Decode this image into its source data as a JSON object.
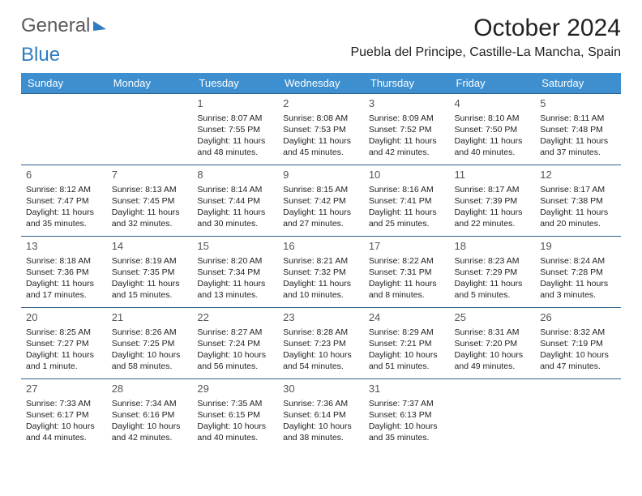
{
  "logo": {
    "word1": "General",
    "word2": "Blue"
  },
  "title": "October 2024",
  "location": "Puebla del Principe, Castille-La Mancha, Spain",
  "dayHeaders": [
    "Sunday",
    "Monday",
    "Tuesday",
    "Wednesday",
    "Thursday",
    "Friday",
    "Saturday"
  ],
  "colors": {
    "header_bg": "#3d8fcf",
    "header_text": "#ffffff",
    "row_border": "#2d5e8a",
    "logo_gray": "#5a5a5a",
    "logo_blue": "#2e7cc0"
  },
  "weeks": [
    [
      null,
      null,
      {
        "n": "1",
        "sr": "Sunrise: 8:07 AM",
        "ss": "Sunset: 7:55 PM",
        "dl": "Daylight: 11 hours and 48 minutes."
      },
      {
        "n": "2",
        "sr": "Sunrise: 8:08 AM",
        "ss": "Sunset: 7:53 PM",
        "dl": "Daylight: 11 hours and 45 minutes."
      },
      {
        "n": "3",
        "sr": "Sunrise: 8:09 AM",
        "ss": "Sunset: 7:52 PM",
        "dl": "Daylight: 11 hours and 42 minutes."
      },
      {
        "n": "4",
        "sr": "Sunrise: 8:10 AM",
        "ss": "Sunset: 7:50 PM",
        "dl": "Daylight: 11 hours and 40 minutes."
      },
      {
        "n": "5",
        "sr": "Sunrise: 8:11 AM",
        "ss": "Sunset: 7:48 PM",
        "dl": "Daylight: 11 hours and 37 minutes."
      }
    ],
    [
      {
        "n": "6",
        "sr": "Sunrise: 8:12 AM",
        "ss": "Sunset: 7:47 PM",
        "dl": "Daylight: 11 hours and 35 minutes."
      },
      {
        "n": "7",
        "sr": "Sunrise: 8:13 AM",
        "ss": "Sunset: 7:45 PM",
        "dl": "Daylight: 11 hours and 32 minutes."
      },
      {
        "n": "8",
        "sr": "Sunrise: 8:14 AM",
        "ss": "Sunset: 7:44 PM",
        "dl": "Daylight: 11 hours and 30 minutes."
      },
      {
        "n": "9",
        "sr": "Sunrise: 8:15 AM",
        "ss": "Sunset: 7:42 PM",
        "dl": "Daylight: 11 hours and 27 minutes."
      },
      {
        "n": "10",
        "sr": "Sunrise: 8:16 AM",
        "ss": "Sunset: 7:41 PM",
        "dl": "Daylight: 11 hours and 25 minutes."
      },
      {
        "n": "11",
        "sr": "Sunrise: 8:17 AM",
        "ss": "Sunset: 7:39 PM",
        "dl": "Daylight: 11 hours and 22 minutes."
      },
      {
        "n": "12",
        "sr": "Sunrise: 8:17 AM",
        "ss": "Sunset: 7:38 PM",
        "dl": "Daylight: 11 hours and 20 minutes."
      }
    ],
    [
      {
        "n": "13",
        "sr": "Sunrise: 8:18 AM",
        "ss": "Sunset: 7:36 PM",
        "dl": "Daylight: 11 hours and 17 minutes."
      },
      {
        "n": "14",
        "sr": "Sunrise: 8:19 AM",
        "ss": "Sunset: 7:35 PM",
        "dl": "Daylight: 11 hours and 15 minutes."
      },
      {
        "n": "15",
        "sr": "Sunrise: 8:20 AM",
        "ss": "Sunset: 7:34 PM",
        "dl": "Daylight: 11 hours and 13 minutes."
      },
      {
        "n": "16",
        "sr": "Sunrise: 8:21 AM",
        "ss": "Sunset: 7:32 PM",
        "dl": "Daylight: 11 hours and 10 minutes."
      },
      {
        "n": "17",
        "sr": "Sunrise: 8:22 AM",
        "ss": "Sunset: 7:31 PM",
        "dl": "Daylight: 11 hours and 8 minutes."
      },
      {
        "n": "18",
        "sr": "Sunrise: 8:23 AM",
        "ss": "Sunset: 7:29 PM",
        "dl": "Daylight: 11 hours and 5 minutes."
      },
      {
        "n": "19",
        "sr": "Sunrise: 8:24 AM",
        "ss": "Sunset: 7:28 PM",
        "dl": "Daylight: 11 hours and 3 minutes."
      }
    ],
    [
      {
        "n": "20",
        "sr": "Sunrise: 8:25 AM",
        "ss": "Sunset: 7:27 PM",
        "dl": "Daylight: 11 hours and 1 minute."
      },
      {
        "n": "21",
        "sr": "Sunrise: 8:26 AM",
        "ss": "Sunset: 7:25 PM",
        "dl": "Daylight: 10 hours and 58 minutes."
      },
      {
        "n": "22",
        "sr": "Sunrise: 8:27 AM",
        "ss": "Sunset: 7:24 PM",
        "dl": "Daylight: 10 hours and 56 minutes."
      },
      {
        "n": "23",
        "sr": "Sunrise: 8:28 AM",
        "ss": "Sunset: 7:23 PM",
        "dl": "Daylight: 10 hours and 54 minutes."
      },
      {
        "n": "24",
        "sr": "Sunrise: 8:29 AM",
        "ss": "Sunset: 7:21 PM",
        "dl": "Daylight: 10 hours and 51 minutes."
      },
      {
        "n": "25",
        "sr": "Sunrise: 8:31 AM",
        "ss": "Sunset: 7:20 PM",
        "dl": "Daylight: 10 hours and 49 minutes."
      },
      {
        "n": "26",
        "sr": "Sunrise: 8:32 AM",
        "ss": "Sunset: 7:19 PM",
        "dl": "Daylight: 10 hours and 47 minutes."
      }
    ],
    [
      {
        "n": "27",
        "sr": "Sunrise: 7:33 AM",
        "ss": "Sunset: 6:17 PM",
        "dl": "Daylight: 10 hours and 44 minutes."
      },
      {
        "n": "28",
        "sr": "Sunrise: 7:34 AM",
        "ss": "Sunset: 6:16 PM",
        "dl": "Daylight: 10 hours and 42 minutes."
      },
      {
        "n": "29",
        "sr": "Sunrise: 7:35 AM",
        "ss": "Sunset: 6:15 PM",
        "dl": "Daylight: 10 hours and 40 minutes."
      },
      {
        "n": "30",
        "sr": "Sunrise: 7:36 AM",
        "ss": "Sunset: 6:14 PM",
        "dl": "Daylight: 10 hours and 38 minutes."
      },
      {
        "n": "31",
        "sr": "Sunrise: 7:37 AM",
        "ss": "Sunset: 6:13 PM",
        "dl": "Daylight: 10 hours and 35 minutes."
      },
      null,
      null
    ]
  ]
}
